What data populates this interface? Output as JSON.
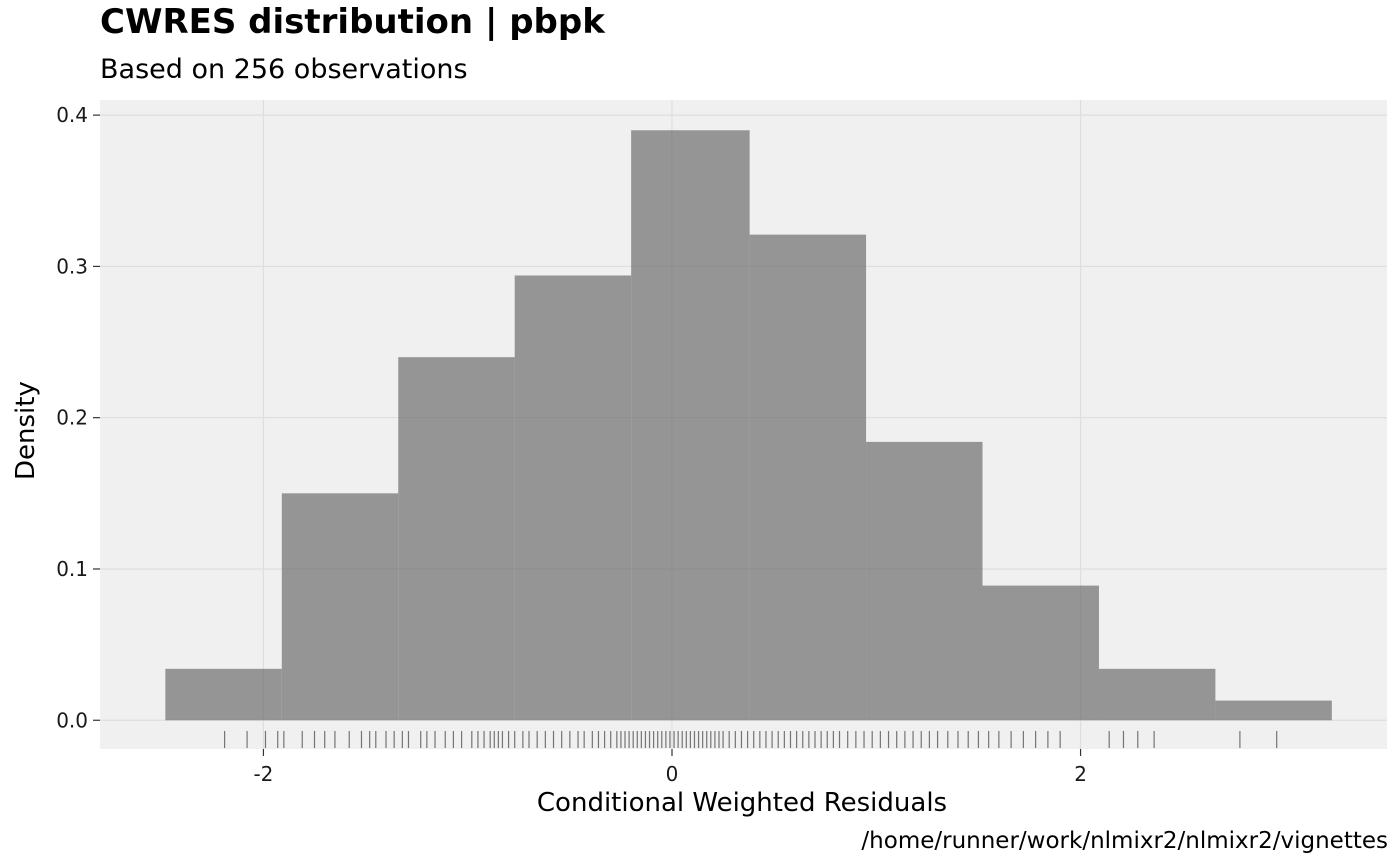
{
  "chart_data": {
    "type": "bar",
    "title": "CWRES distribution | pbpk",
    "subtitle": "Based on 256 observations",
    "xlabel": "Conditional Weighted Residuals",
    "ylabel": "Density",
    "caption": "/home/runner/work/nlmixr2/nlmixr2/vignettes",
    "xlim": [
      -2.8,
      3.5
    ],
    "ylim": [
      -0.019,
      0.41
    ],
    "x_ticks": [
      -2,
      0,
      2
    ],
    "x_tick_labels": [
      "-2",
      "0",
      "2"
    ],
    "y_ticks": [
      0.0,
      0.1,
      0.2,
      0.3,
      0.4
    ],
    "y_tick_labels": [
      "0.0",
      "0.1",
      "0.2",
      "0.3",
      "0.4"
    ],
    "grid": true,
    "bins": [
      {
        "x0": -2.48,
        "x1": -1.91,
        "density": 0.034
      },
      {
        "x0": -1.91,
        "x1": -1.34,
        "density": 0.15
      },
      {
        "x0": -1.34,
        "x1": -0.77,
        "density": 0.24
      },
      {
        "x0": -0.77,
        "x1": -0.2,
        "density": 0.294
      },
      {
        "x0": -0.2,
        "x1": 0.38,
        "density": 0.39
      },
      {
        "x0": 0.38,
        "x1": 0.95,
        "density": 0.321
      },
      {
        "x0": 0.95,
        "x1": 1.52,
        "density": 0.184
      },
      {
        "x0": 1.52,
        "x1": 2.09,
        "density": 0.089
      },
      {
        "x0": 2.09,
        "x1": 2.66,
        "density": 0.034
      },
      {
        "x0": 2.66,
        "x1": 3.23,
        "density": 0.013
      }
    ],
    "rug": [
      -2.19,
      -2.08,
      -1.99,
      -1.93,
      -1.9,
      -1.81,
      -1.75,
      -1.7,
      -1.65,
      -1.58,
      -1.52,
      -1.48,
      -1.45,
      -1.4,
      -1.36,
      -1.32,
      -1.29,
      -1.23,
      -1.2,
      -1.16,
      -1.11,
      -1.07,
      -1.03,
      -0.98,
      -0.95,
      -0.92,
      -0.89,
      -0.87,
      -0.85,
      -0.83,
      -0.8,
      -0.77,
      -0.73,
      -0.7,
      -0.66,
      -0.62,
      -0.58,
      -0.54,
      -0.5,
      -0.46,
      -0.43,
      -0.39,
      -0.36,
      -0.33,
      -0.3,
      -0.27,
      -0.25,
      -0.23,
      -0.21,
      -0.19,
      -0.17,
      -0.15,
      -0.13,
      -0.11,
      -0.09,
      -0.07,
      -0.05,
      -0.03,
      -0.01,
      0.01,
      0.03,
      0.05,
      0.07,
      0.09,
      0.11,
      0.13,
      0.15,
      0.17,
      0.19,
      0.21,
      0.23,
      0.25,
      0.28,
      0.31,
      0.34,
      0.37,
      0.4,
      0.43,
      0.46,
      0.49,
      0.52,
      0.55,
      0.58,
      0.61,
      0.64,
      0.67,
      0.7,
      0.73,
      0.76,
      0.79,
      0.82,
      0.86,
      0.9,
      0.94,
      0.98,
      1.02,
      1.06,
      1.1,
      1.14,
      1.18,
      1.22,
      1.26,
      1.3,
      1.35,
      1.4,
      1.45,
      1.5,
      1.55,
      1.6,
      1.66,
      1.72,
      1.78,
      1.84,
      1.9,
      2.14,
      2.21,
      2.28,
      2.36,
      2.78,
      2.96
    ]
  }
}
